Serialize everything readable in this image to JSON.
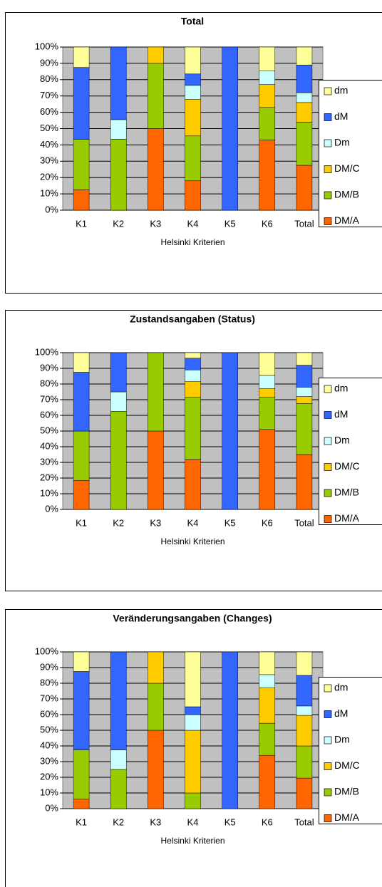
{
  "chart_data": [
    {
      "type": "bar",
      "stacked": true,
      "title": "Total",
      "x_label": "Helsinki Kriterien",
      "categories": [
        "K1",
        "K2",
        "K3",
        "K4",
        "K5",
        "K6",
        "Total"
      ],
      "series": [
        {
          "name": "DM/A",
          "color": "#ff6600",
          "values": [
            12.5,
            0,
            50,
            18,
            0,
            43,
            27.5
          ]
        },
        {
          "name": "DM/B",
          "color": "#99cc00",
          "values": [
            31,
            43.5,
            40,
            27.5,
            0,
            20,
            26.5
          ]
        },
        {
          "name": "DM/C",
          "color": "#ffcc00",
          "values": [
            0,
            0,
            10,
            22.5,
            0,
            14,
            12
          ]
        },
        {
          "name": "Dm",
          "color": "#ccffff",
          "values": [
            0,
            12,
            0,
            8.5,
            0,
            8.5,
            6
          ]
        },
        {
          "name": "dM",
          "color": "#3366ff",
          "values": [
            44,
            44.5,
            0,
            7,
            100,
            0,
            17
          ]
        },
        {
          "name": "dm",
          "color": "#ffff99",
          "values": [
            12.5,
            0,
            0,
            16.5,
            0,
            14.5,
            11
          ]
        }
      ],
      "ylim": [
        0,
        100
      ],
      "yticks": [
        {
          "value": 0,
          "label": "0%"
        },
        {
          "value": 10,
          "label": "10%"
        },
        {
          "value": 20,
          "label": "20%"
        },
        {
          "value": 30,
          "label": "30%"
        },
        {
          "value": 40,
          "label": "40%"
        },
        {
          "value": 50,
          "label": "50%"
        },
        {
          "value": 60,
          "label": "60%"
        },
        {
          "value": 70,
          "label": "70%"
        },
        {
          "value": 80,
          "label": "80%"
        },
        {
          "value": 90,
          "label": "90%"
        },
        {
          "value": 100,
          "label": "100%"
        }
      ],
      "grid": true
    },
    {
      "type": "bar",
      "stacked": true,
      "title": "Zustandsangaben (Status)",
      "x_label": "Helsinki Kriterien",
      "categories": [
        "K1",
        "K2",
        "K3",
        "K4",
        "K5",
        "K6",
        "Total"
      ],
      "series": [
        {
          "name": "DM/A",
          "color": "#ff6600",
          "values": [
            18.5,
            0,
            50,
            32,
            0,
            51,
            35
          ]
        },
        {
          "name": "DM/B",
          "color": "#99cc00",
          "values": [
            31.5,
            62.5,
            50,
            39.5,
            0,
            20.5,
            32.5
          ]
        },
        {
          "name": "DM/C",
          "color": "#ffcc00",
          "values": [
            0,
            0,
            0,
            10,
            0,
            5.5,
            4.5
          ]
        },
        {
          "name": "Dm",
          "color": "#ccffff",
          "values": [
            0,
            12.5,
            0,
            7.5,
            0,
            8.5,
            6
          ]
        },
        {
          "name": "dM",
          "color": "#3366ff",
          "values": [
            37.5,
            25,
            0,
            7.5,
            100,
            0,
            14
          ]
        },
        {
          "name": "dm",
          "color": "#ffff99",
          "values": [
            12.5,
            0,
            0,
            3.5,
            0,
            14.5,
            8
          ]
        }
      ],
      "ylim": [
        0,
        100
      ],
      "yticks": [
        {
          "value": 0,
          "label": "0%"
        },
        {
          "value": 10,
          "label": "10%"
        },
        {
          "value": 20,
          "label": "20%"
        },
        {
          "value": 30,
          "label": "30%"
        },
        {
          "value": 40,
          "label": "40%"
        },
        {
          "value": 50,
          "label": "50%"
        },
        {
          "value": 60,
          "label": "60%"
        },
        {
          "value": 70,
          "label": "70%"
        },
        {
          "value": 80,
          "label": "80%"
        },
        {
          "value": 90,
          "label": "90%"
        },
        {
          "value": 100,
          "label": "100%"
        }
      ],
      "grid": true
    },
    {
      "type": "bar",
      "stacked": true,
      "title": "Veränderungsangaben (Changes)",
      "x_label": "Helsinki Kriterien",
      "categories": [
        "K1",
        "K2",
        "K3",
        "K4",
        "K5",
        "K6",
        "Total"
      ],
      "series": [
        {
          "name": "DM/A",
          "color": "#ff6600",
          "values": [
            6,
            0,
            50,
            0,
            0,
            34,
            19.5
          ]
        },
        {
          "name": "DM/B",
          "color": "#99cc00",
          "values": [
            31.5,
            25,
            30,
            10,
            0,
            20.5,
            20.5
          ]
        },
        {
          "name": "DM/C",
          "color": "#ffcc00",
          "values": [
            0,
            0,
            20,
            40,
            0,
            22.5,
            19.5
          ]
        },
        {
          "name": "Dm",
          "color": "#ccffff",
          "values": [
            0,
            12.5,
            0,
            10,
            0,
            8.5,
            6
          ]
        },
        {
          "name": "dM",
          "color": "#3366ff",
          "values": [
            50,
            62.5,
            0,
            5,
            100,
            0,
            19.5
          ]
        },
        {
          "name": "dm",
          "color": "#ffff99",
          "values": [
            12.5,
            0,
            0,
            35,
            0,
            14.5,
            15
          ]
        }
      ],
      "ylim": [
        0,
        100
      ],
      "yticks": [
        {
          "value": 0,
          "label": "0%"
        },
        {
          "value": 10,
          "label": "10%"
        },
        {
          "value": 20,
          "label": "20%"
        },
        {
          "value": 30,
          "label": "30%"
        },
        {
          "value": 40,
          "label": "40%"
        },
        {
          "value": 50,
          "label": "50%"
        },
        {
          "value": 60,
          "label": "60%"
        },
        {
          "value": 70,
          "label": "70%"
        },
        {
          "value": 80,
          "label": "80%"
        },
        {
          "value": 90,
          "label": "90%"
        },
        {
          "value": 100,
          "label": "100%"
        }
      ],
      "grid": true
    }
  ]
}
